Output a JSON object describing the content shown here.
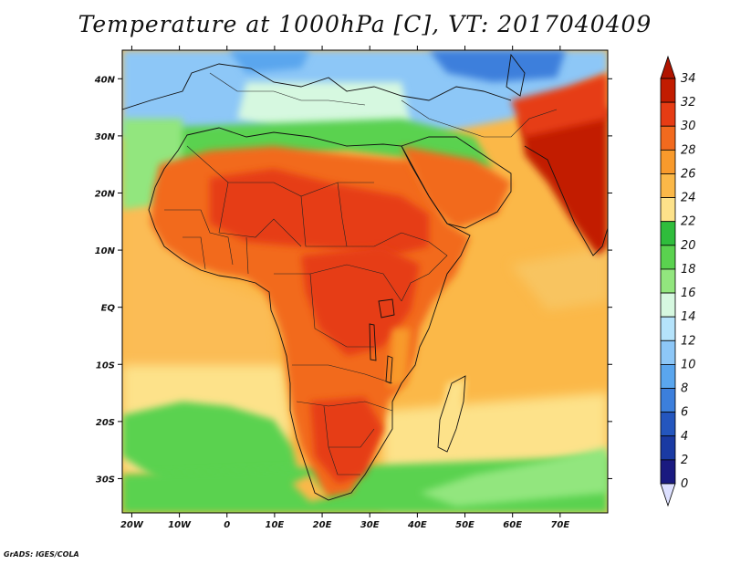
{
  "title": "Temperature at 1000hPa [C], VT: 2017040409",
  "credit": "GrADS: IGES/COLA",
  "map": {
    "lon_range": [
      -22,
      80
    ],
    "lat_range": [
      -36,
      45
    ],
    "x_ticks": [
      {
        "lon": -20,
        "label": "20W"
      },
      {
        "lon": -10,
        "label": "10W"
      },
      {
        "lon": 0,
        "label": "0"
      },
      {
        "lon": 10,
        "label": "10E"
      },
      {
        "lon": 20,
        "label": "20E"
      },
      {
        "lon": 30,
        "label": "30E"
      },
      {
        "lon": 40,
        "label": "40E"
      },
      {
        "lon": 50,
        "label": "50E"
      },
      {
        "lon": 60,
        "label": "60E"
      },
      {
        "lon": 70,
        "label": "70E"
      }
    ],
    "y_ticks": [
      {
        "lat": 40,
        "label": "40N"
      },
      {
        "lat": 30,
        "label": "30N"
      },
      {
        "lat": 20,
        "label": "20N"
      },
      {
        "lat": 10,
        "label": "10N"
      },
      {
        "lat": 0,
        "label": "EQ"
      },
      {
        "lat": -10,
        "label": "10S"
      },
      {
        "lat": -20,
        "label": "20S"
      },
      {
        "lat": -30,
        "label": "30S"
      }
    ]
  },
  "colorbar": {
    "labels": [
      "34",
      "32",
      "30",
      "28",
      "26",
      "24",
      "22",
      "20",
      "18",
      "16",
      "14",
      "12",
      "10",
      "8",
      "6",
      "4",
      "2",
      "0"
    ],
    "colors": [
      "#c21c00",
      "#e63c14",
      "#f26a1e",
      "#f89a2c",
      "#fbb848",
      "#fde28a",
      "#2fbd3c",
      "#5ad24f",
      "#92e67e",
      "#d6f8e0",
      "#b5e3fb",
      "#8dc7f7",
      "#5aa6ee",
      "#3c7fdc",
      "#2456be",
      "#1a3aa3",
      "#1a1a80"
    ],
    "top_arrow_color": "#b01400",
    "bottom_arrow_color": "#dde0ff"
  },
  "colors": {
    "ocean_warm": "#fbb848",
    "ocean_mild": "#fde28a",
    "ocean_cool": "#5ad24f",
    "land_hot": "#e63c14",
    "land_hottest": "#c21c00",
    "sea_cold": "#8dc7f7",
    "border": "#111111"
  }
}
